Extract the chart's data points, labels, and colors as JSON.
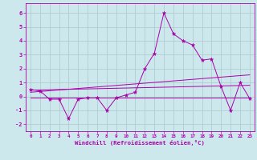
{
  "xlabel": "Windchill (Refroidissement éolien,°C)",
  "xlim": [
    -0.5,
    23.5
  ],
  "ylim": [
    -2.5,
    6.7
  ],
  "yticks": [
    -2,
    -1,
    0,
    1,
    2,
    3,
    4,
    5,
    6
  ],
  "xticks": [
    0,
    1,
    2,
    3,
    4,
    5,
    6,
    7,
    8,
    9,
    10,
    11,
    12,
    13,
    14,
    15,
    16,
    17,
    18,
    19,
    20,
    21,
    22,
    23
  ],
  "background_color": "#cce8ec",
  "grid_color": "#aac8cc",
  "line_color": "#aa00aa",
  "line1_x": [
    0,
    1,
    2,
    3,
    4,
    5,
    6,
    7,
    8,
    9,
    10,
    11,
    12,
    13,
    14,
    15,
    16,
    17,
    18,
    19,
    20,
    21,
    22,
    23
  ],
  "line1_y": [
    0.5,
    0.4,
    -0.2,
    -0.2,
    -1.6,
    -0.2,
    -0.1,
    -0.1,
    -1.0,
    -0.1,
    0.1,
    0.3,
    2.0,
    3.1,
    6.0,
    4.5,
    4.0,
    3.7,
    2.6,
    2.7,
    0.7,
    -1.0,
    1.0,
    -0.15
  ],
  "line2_x": [
    0,
    23
  ],
  "line2_y": [
    0.45,
    0.8
  ],
  "line3_x": [
    0,
    23
  ],
  "line3_y": [
    0.3,
    1.55
  ],
  "line4_x": [
    0,
    23
  ],
  "line4_y": [
    -0.1,
    -0.1
  ]
}
